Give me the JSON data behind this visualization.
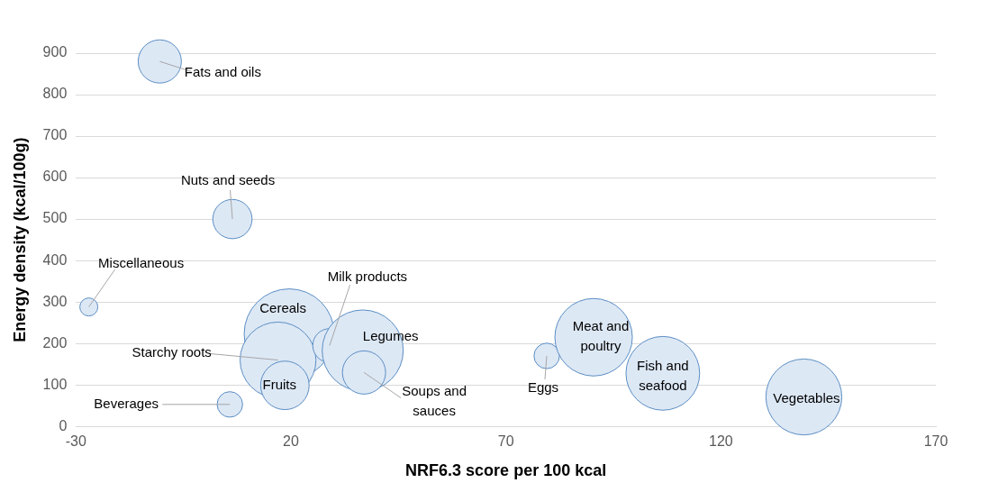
{
  "chart_data": {
    "type": "bubble",
    "xlabel": "NRF6.3 score per 100 kcal",
    "ylabel": "Energy density (kcal/100g)",
    "x": [
      -10.5,
      6.4,
      -27,
      19.6,
      17,
      18.6,
      29,
      36.7,
      37,
      5.8,
      79.5,
      90.4,
      106.5,
      139.3
    ],
    "values": [
      880,
      500,
      288,
      223,
      160,
      99,
      195,
      183,
      130,
      53,
      170,
      215,
      128,
      71
    ],
    "sizes": [
      0.23,
      0.19,
      0.04,
      1,
      0.71,
      0.29,
      0.14,
      0.81,
      0.23,
      0.08,
      0.08,
      0.74,
      0.67,
      0.71
    ],
    "color": "#dde8f5",
    "xlim": [
      -30,
      170
    ],
    "xticks": [
      -30,
      20,
      70,
      120,
      170
    ],
    "ylim": [
      0,
      900
    ],
    "yticks": [
      0,
      100,
      200,
      300,
      400,
      500,
      600,
      700,
      800,
      900
    ],
    "grid": "y",
    "legend": false,
    "annotations": [
      {
        "text": "Fats and oils",
        "x": -10.5,
        "y": 880
      },
      {
        "text": "Nuts and seeds",
        "x": 6.4,
        "y": 500
      },
      {
        "text": "Miscellaneous",
        "x": -27,
        "y": 288
      },
      {
        "text": "Cereals",
        "x": 19.6,
        "y": 223
      },
      {
        "text": "Starchy roots",
        "x": 17,
        "y": 160
      },
      {
        "text": "Fruits",
        "x": 18.6,
        "y": 99
      },
      {
        "text": "Milk products",
        "x": 29,
        "y": 195
      },
      {
        "text": "Legumes",
        "x": 36.7,
        "y": 183
      },
      {
        "text": "Soups and sauces",
        "x": 37,
        "y": 130
      },
      {
        "text": "Beverages",
        "x": 5.8,
        "y": 53
      },
      {
        "text": "Eggs",
        "x": 79.5,
        "y": 170
      },
      {
        "text": "Meat and poultry",
        "x": 90.4,
        "y": 215
      },
      {
        "text": "Fish and seafood",
        "x": 106.5,
        "y": 128
      },
      {
        "text": "Vegetables",
        "x": 139.3,
        "y": 71
      }
    ]
  }
}
